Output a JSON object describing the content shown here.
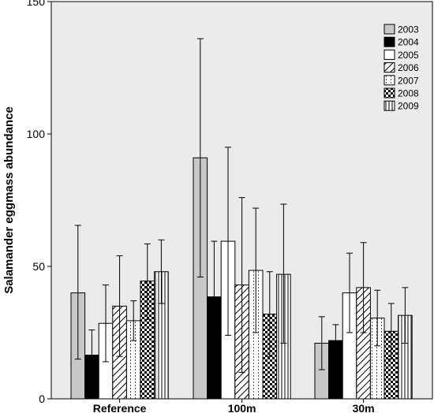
{
  "chart_data": {
    "type": "bar",
    "title": "",
    "xlabel": "",
    "ylabel": "Salamander eggmass abundance",
    "ylim": [
      0,
      150
    ],
    "yticks": [
      0,
      50,
      100,
      150
    ],
    "grid": false,
    "legend_position": "top-right",
    "categories": [
      "Reference",
      "100m",
      "30m"
    ],
    "series": [
      {
        "name": "2003",
        "pattern": "solid-gray",
        "values": [
          40,
          91,
          21
        ],
        "err_upper": [
          65.5,
          136,
          31
        ],
        "err_lower": [
          15,
          46,
          11
        ]
      },
      {
        "name": "2004",
        "pattern": "solid-black",
        "values": [
          16.5,
          38.5,
          22
        ],
        "err_upper": [
          26,
          59.5,
          28
        ],
        "err_lower": [
          8,
          16,
          15
        ]
      },
      {
        "name": "2005",
        "pattern": "white",
        "values": [
          28.5,
          59.5,
          40
        ],
        "err_upper": [
          43,
          95,
          55
        ],
        "err_lower": [
          14,
          24,
          25
        ]
      },
      {
        "name": "2006",
        "pattern": "diagonal-hatch",
        "values": [
          35,
          43,
          42
        ],
        "err_upper": [
          54,
          76,
          59
        ],
        "err_lower": [
          16,
          10,
          25
        ]
      },
      {
        "name": "2007",
        "pattern": "dotted-vertical",
        "values": [
          29.5,
          48.5,
          30.5
        ],
        "err_upper": [
          37,
          72,
          41
        ],
        "err_lower": [
          22,
          25,
          20
        ]
      },
      {
        "name": "2008",
        "pattern": "checker",
        "values": [
          44.5,
          32,
          25.5
        ],
        "err_upper": [
          58.5,
          48,
          36
        ],
        "err_lower": [
          30,
          16,
          15
        ]
      },
      {
        "name": "2009",
        "pattern": "vertical-lines",
        "values": [
          48,
          47,
          31.5
        ],
        "err_upper": [
          60,
          73.5,
          42
        ],
        "err_lower": [
          36,
          21,
          21
        ]
      }
    ],
    "colors": {
      "plot_background": "#ebebeb",
      "page_background": "#ffffff",
      "gray_fill": "#c8c8c8",
      "black_fill": "#000000",
      "outline": "#000000"
    }
  }
}
